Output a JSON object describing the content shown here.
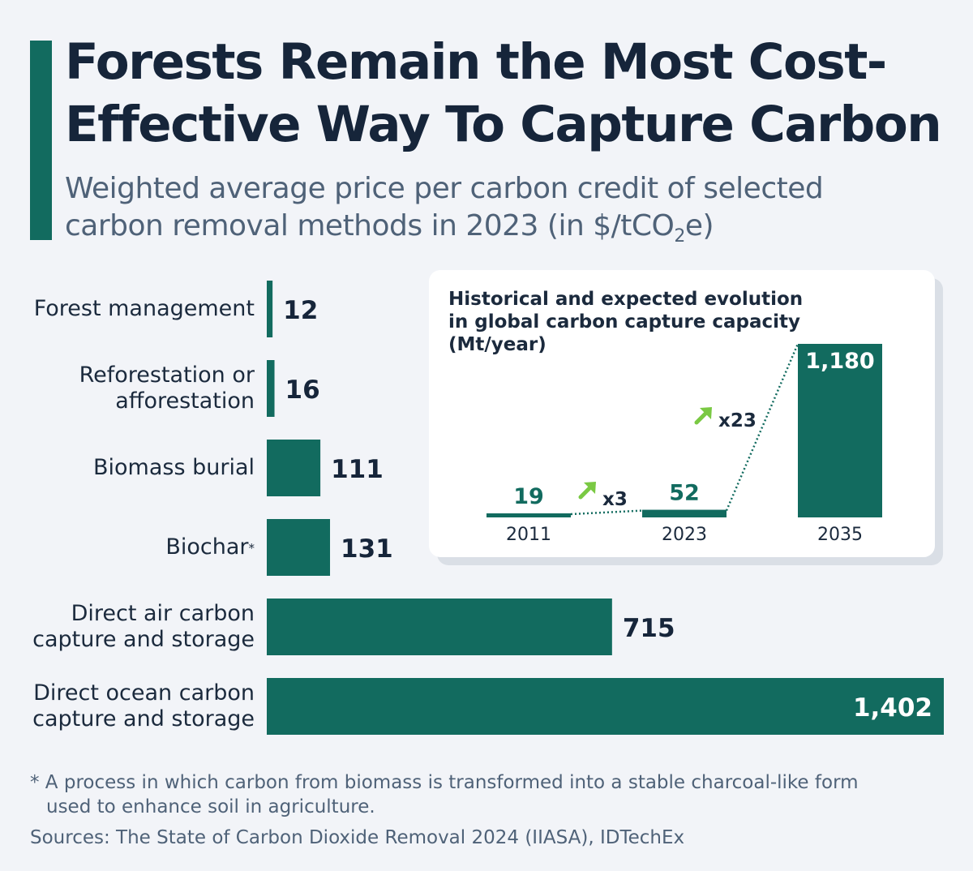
{
  "title": "Forests Remain the Most Cost-Effective Way To Capture Carbon",
  "subtitle_prefix": "Weighted average price per carbon credit of selected carbon removal methods in 2023 (in $/tCO",
  "subtitle_sub": "2",
  "subtitle_suffix": "e)",
  "chart_data": [
    {
      "type": "bar",
      "orientation": "horizontal",
      "categories": [
        "Forest management",
        "Reforestation or afforestation",
        "Biomass burial",
        "Biochar",
        "Direct air carbon capture and storage",
        "Direct ocean carbon capture and storage"
      ],
      "category_marks": [
        "",
        "",
        "",
        "*",
        "",
        ""
      ],
      "values": [
        12,
        16,
        111,
        131,
        715,
        1402
      ],
      "value_labels": [
        "12",
        "16",
        "111",
        "131",
        "715",
        "1,402"
      ],
      "xlim": [
        0,
        1402
      ],
      "grid": false,
      "color": "#126b5f"
    },
    {
      "type": "bar",
      "title": "Historical and expected evolution in global carbon capture capacity (Mt/year)",
      "categories": [
        "2011",
        "2023",
        "2035"
      ],
      "values": [
        19,
        52,
        1180
      ],
      "value_labels": [
        "19",
        "52",
        "1,180"
      ],
      "ylim": [
        0,
        1180
      ],
      "annotations": [
        "x3",
        "x23"
      ],
      "grid": false,
      "color": "#126b5f",
      "arrow_color": "#7ac943"
    }
  ],
  "footnote_line1": "* A process in which carbon from biomass is transformed into a stable charcoal-like form",
  "footnote_line2": "used to enhance soil in agriculture.",
  "sources": "Sources: The State of Carbon Dioxide Removal 2024 (IIASA), IDTechEx"
}
